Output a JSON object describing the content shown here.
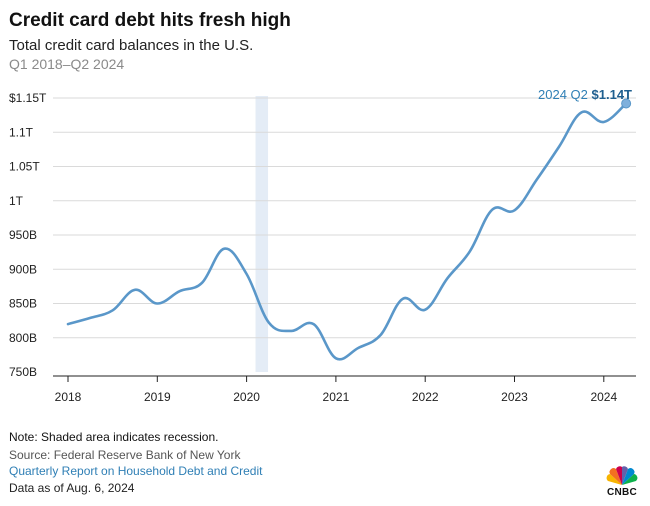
{
  "header": {
    "title": "Credit card debt hits fresh high",
    "subtitle": "Total credit card balances in the U.S.",
    "range": "Q1 2018–Q2 2024"
  },
  "chart_data": {
    "type": "line",
    "ylim": [
      750,
      1150
    ],
    "y_ticks": [
      {
        "value": 1150,
        "label": "$1.15T"
      },
      {
        "value": 1100,
        "label": "1.1T"
      },
      {
        "value": 1050,
        "label": "1.05T"
      },
      {
        "value": 1000,
        "label": "1T"
      },
      {
        "value": 950,
        "label": "950B"
      },
      {
        "value": 900,
        "label": "900B"
      },
      {
        "value": 850,
        "label": "850B"
      },
      {
        "value": 800,
        "label": "800B"
      },
      {
        "value": 750,
        "label": "750B"
      }
    ],
    "x_ticks": [
      "2018",
      "2019",
      "2020",
      "2021",
      "2022",
      "2023",
      "2024"
    ],
    "x_range": [
      2018,
      2024.25
    ],
    "recession": {
      "start": 2020.1,
      "end": 2020.24
    },
    "series": [
      {
        "color": "#5a97c9",
        "points": [
          [
            2018.0,
            820
          ],
          [
            2018.25,
            829
          ],
          [
            2018.5,
            840
          ],
          [
            2018.75,
            870
          ],
          [
            2019.0,
            850
          ],
          [
            2019.25,
            868
          ],
          [
            2019.5,
            880
          ],
          [
            2019.75,
            930
          ],
          [
            2020.0,
            893
          ],
          [
            2020.25,
            822
          ],
          [
            2020.5,
            810
          ],
          [
            2020.75,
            820
          ],
          [
            2021.0,
            770
          ],
          [
            2021.25,
            785
          ],
          [
            2021.5,
            804
          ],
          [
            2021.75,
            857
          ],
          [
            2022.0,
            841
          ],
          [
            2022.25,
            887
          ],
          [
            2022.5,
            926
          ],
          [
            2022.75,
            987
          ],
          [
            2023.0,
            986
          ],
          [
            2023.25,
            1031
          ],
          [
            2023.5,
            1079
          ],
          [
            2023.75,
            1129
          ],
          [
            2024.0,
            1115
          ],
          [
            2024.25,
            1142
          ]
        ]
      }
    ],
    "annotation": {
      "label": "2024 Q2 ",
      "value_label": "$1.14T"
    }
  },
  "footer": {
    "note": "Note: Shaded area indicates recession.",
    "source": "Source: Federal Reserve Bank of New York",
    "link": "Quarterly Report on Household Debt and Credit",
    "as_of": "Data as of Aug. 6, 2024",
    "logo": "CNBC",
    "logo_icon": "nbc-peacock-icon"
  }
}
